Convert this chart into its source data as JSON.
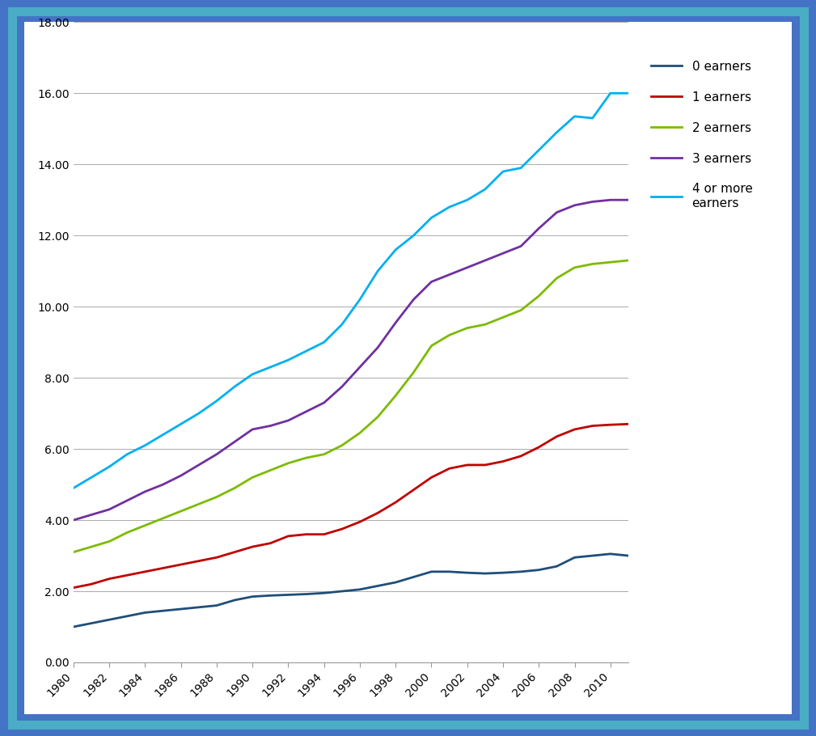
{
  "years": [
    1980,
    1981,
    1982,
    1983,
    1984,
    1985,
    1986,
    1987,
    1988,
    1989,
    1990,
    1991,
    1992,
    1993,
    1994,
    1995,
    1996,
    1997,
    1998,
    1999,
    2000,
    2001,
    2002,
    2003,
    2004,
    2005,
    2006,
    2007,
    2008,
    2009,
    2010,
    2011
  ],
  "zero_earners": [
    1.0,
    1.1,
    1.2,
    1.3,
    1.4,
    1.45,
    1.5,
    1.55,
    1.6,
    1.75,
    1.85,
    1.88,
    1.9,
    1.92,
    1.95,
    2.0,
    2.05,
    2.15,
    2.25,
    2.4,
    2.55,
    2.55,
    2.52,
    2.5,
    2.52,
    2.55,
    2.6,
    2.7,
    2.95,
    3.0,
    3.05,
    3.0
  ],
  "one_earner": [
    2.1,
    2.2,
    2.35,
    2.45,
    2.55,
    2.65,
    2.75,
    2.85,
    2.95,
    3.1,
    3.25,
    3.35,
    3.55,
    3.6,
    3.6,
    3.75,
    3.95,
    4.2,
    4.5,
    4.85,
    5.2,
    5.45,
    5.55,
    5.55,
    5.65,
    5.8,
    6.05,
    6.35,
    6.55,
    6.65,
    6.68,
    6.7
  ],
  "two_earners": [
    3.1,
    3.25,
    3.4,
    3.65,
    3.85,
    4.05,
    4.25,
    4.45,
    4.65,
    4.9,
    5.2,
    5.4,
    5.6,
    5.75,
    5.85,
    6.1,
    6.45,
    6.9,
    7.5,
    8.15,
    8.9,
    9.2,
    9.4,
    9.5,
    9.7,
    9.9,
    10.3,
    10.8,
    11.1,
    11.2,
    11.25,
    11.3
  ],
  "three_earners": [
    4.0,
    4.15,
    4.3,
    4.55,
    4.8,
    5.0,
    5.25,
    5.55,
    5.85,
    6.2,
    6.55,
    6.65,
    6.8,
    7.05,
    7.3,
    7.75,
    8.3,
    8.85,
    9.55,
    10.2,
    10.7,
    10.9,
    11.1,
    11.3,
    11.5,
    11.7,
    12.2,
    12.65,
    12.85,
    12.95,
    13.0,
    13.0
  ],
  "four_plus_earners": [
    4.9,
    5.2,
    5.5,
    5.85,
    6.1,
    6.4,
    6.7,
    7.0,
    7.35,
    7.75,
    8.1,
    8.3,
    8.5,
    8.75,
    9.0,
    9.5,
    10.2,
    11.0,
    11.6,
    12.0,
    12.5,
    12.8,
    13.0,
    13.3,
    13.8,
    13.9,
    14.4,
    14.9,
    15.35,
    15.3,
    16.0,
    16.0
  ],
  "colors": {
    "zero_earners": "#1F4E79",
    "one_earner": "#C00000",
    "two_earners": "#7CBB00",
    "three_earners": "#7030A0",
    "four_plus_earners": "#00B0F0"
  },
  "legend_labels": [
    "0 earners",
    "1 earners",
    "2 earners",
    "3 earners",
    "4 or more\nearners"
  ],
  "ylim": [
    0,
    18
  ],
  "yticks": [
    0.0,
    2.0,
    4.0,
    6.0,
    8.0,
    10.0,
    12.0,
    14.0,
    16.0,
    18.0
  ],
  "background_color": "#FFFFFF",
  "border_color": "#4BACC6",
  "outer_bg": "#4472C4",
  "figsize": [
    10.09,
    9.1
  ],
  "dpi": 100
}
